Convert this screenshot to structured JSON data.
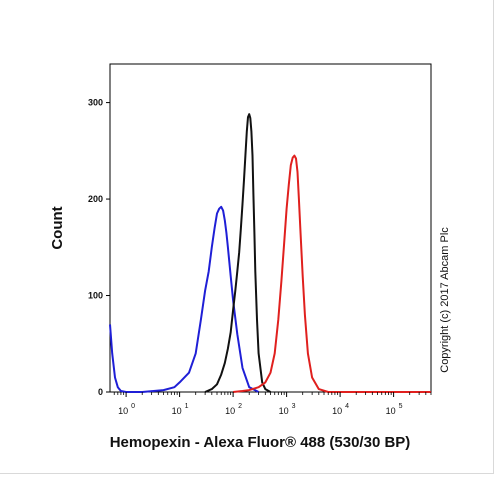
{
  "chart_data": {
    "type": "line",
    "title": "",
    "xlabel": "Hemopexin - Alexa Fluor® 488 (530/30 BP)",
    "ylabel": "Count",
    "x_scale": "log",
    "xlim": [
      0.5,
      500000
    ],
    "ylim": [
      0,
      340
    ],
    "x_ticks": [
      {
        "value": 1,
        "label": "10",
        "exp": "0"
      },
      {
        "value": 10,
        "label": "10",
        "exp": "1"
      },
      {
        "value": 100,
        "label": "10",
        "exp": "2"
      },
      {
        "value": 1000,
        "label": "10",
        "exp": "3"
      },
      {
        "value": 10000,
        "label": "10",
        "exp": "4"
      },
      {
        "value": 100000,
        "label": "10",
        "exp": "5"
      }
    ],
    "y_ticks": [
      {
        "value": 0,
        "label": "0"
      },
      {
        "value": 100,
        "label": "100"
      },
      {
        "value": 200,
        "label": "200"
      },
      {
        "value": 300,
        "label": "300"
      }
    ],
    "grid": false,
    "legend": "none",
    "annotation": "Copyright (c) 2017 Abcam Plc",
    "series": [
      {
        "color": "#1f1fd6",
        "x": [
          0.5,
          0.55,
          0.62,
          0.7,
          0.8,
          1,
          2,
          5,
          8,
          10,
          15,
          20,
          25,
          30,
          35,
          40,
          45,
          50,
          55,
          60,
          65,
          70,
          75,
          80,
          90,
          100,
          120,
          150,
          200,
          300
        ],
        "y": [
          70,
          40,
          15,
          5,
          1,
          0,
          0,
          2,
          5,
          10,
          20,
          40,
          75,
          105,
          125,
          150,
          170,
          185,
          190,
          192,
          188,
          178,
          165,
          150,
          120,
          95,
          60,
          25,
          5,
          0
        ]
      },
      {
        "color": "#111111",
        "x": [
          30,
          40,
          50,
          60,
          70,
          80,
          90,
          100,
          110,
          120,
          130,
          140,
          150,
          160,
          170,
          180,
          190,
          200,
          210,
          220,
          230,
          240,
          250,
          260,
          280,
          300,
          350,
          400,
          500
        ],
        "y": [
          0,
          3,
          8,
          18,
          30,
          45,
          62,
          85,
          105,
          125,
          145,
          170,
          195,
          220,
          245,
          270,
          285,
          288,
          284,
          270,
          245,
          205,
          165,
          125,
          75,
          40,
          10,
          3,
          0
        ]
      },
      {
        "color": "#e0201e",
        "x": [
          100,
          150,
          200,
          300,
          400,
          500,
          600,
          700,
          800,
          900,
          1000,
          1100,
          1200,
          1300,
          1400,
          1500,
          1600,
          1700,
          1800,
          2000,
          2200,
          2500,
          3000,
          4000,
          6000,
          100000,
          500000
        ],
        "y": [
          0,
          1,
          2,
          5,
          10,
          20,
          40,
          75,
          115,
          155,
          190,
          215,
          235,
          243,
          245,
          242,
          228,
          200,
          170,
          120,
          80,
          40,
          15,
          3,
          0,
          0,
          0
        ]
      }
    ]
  }
}
